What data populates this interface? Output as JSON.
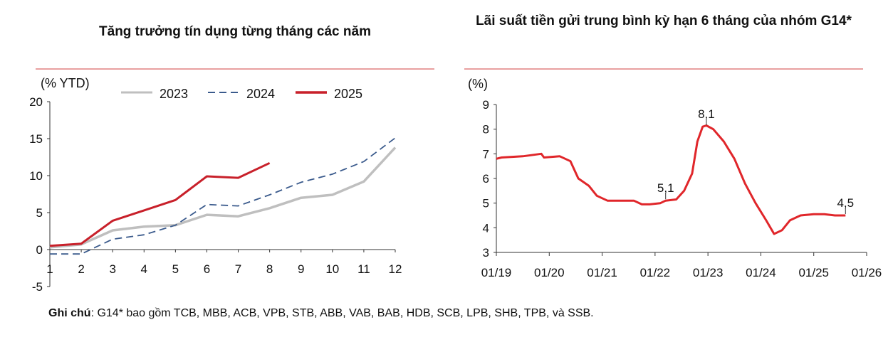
{
  "note": {
    "label": "Ghi chú",
    "text": ": G14* bao gồm TCB, MBB, ACB, VPB, STB, ABB, VAB, BAB, HDB, SCB, LPB, SHB, TPB, và SSB."
  },
  "chart_data": [
    {
      "type": "line",
      "title": "Tăng trưởng tín dụng từng tháng các năm",
      "ylabel": "(% YTD)",
      "xlabel": "",
      "xlim": [
        1,
        12
      ],
      "ylim": [
        -5,
        20
      ],
      "x_ticks": [
        "1",
        "2",
        "3",
        "4",
        "5",
        "6",
        "7",
        "8",
        "9",
        "10",
        "11",
        "12"
      ],
      "y_ticks": [
        "-5",
        "0",
        "5",
        "10",
        "15",
        "20"
      ],
      "legend_position": "top",
      "series": [
        {
          "name": "2023",
          "color": "#bfbfbf",
          "style": "solid",
          "x": [
            1,
            2,
            3,
            4,
            5,
            6,
            7,
            8,
            9,
            10,
            11,
            12
          ],
          "values": [
            0.3,
            0.7,
            2.6,
            3.1,
            3.3,
            4.7,
            4.5,
            5.6,
            7.0,
            7.4,
            9.2,
            13.8
          ]
        },
        {
          "name": "2024",
          "color": "#3a5a8c",
          "style": "dashed",
          "x": [
            1,
            2,
            3,
            4,
            5,
            6,
            7,
            8,
            9,
            10,
            11,
            12
          ],
          "values": [
            -0.6,
            -0.6,
            1.4,
            2.0,
            3.3,
            6.1,
            5.9,
            7.4,
            9.1,
            10.2,
            11.9,
            15.1
          ]
        },
        {
          "name": "2025",
          "color": "#c8202a",
          "style": "solid",
          "x": [
            1,
            2,
            3,
            4,
            5,
            6,
            7,
            8
          ],
          "values": [
            0.5,
            0.8,
            3.9,
            5.3,
            6.7,
            9.9,
            9.7,
            11.7
          ]
        }
      ]
    },
    {
      "type": "line",
      "title": "Lãi suất tiền gửi trung bình kỳ hạn 6 tháng của nhóm G14*",
      "ylabel": "(%)",
      "xlabel": "",
      "xlim": [
        2019.0,
        2026.0
      ],
      "ylim": [
        3,
        9
      ],
      "x_ticks": [
        "01/19",
        "01/20",
        "01/21",
        "01/22",
        "01/23",
        "01/24",
        "01/25",
        "01/26"
      ],
      "y_ticks": [
        "3",
        "4",
        "5",
        "6",
        "7",
        "8",
        "9"
      ],
      "series": [
        {
          "name": "G14",
          "color": "#e0262a",
          "x": [
            2019.0,
            2019.1,
            2019.5,
            2019.85,
            2019.9,
            2020.2,
            2020.4,
            2020.55,
            2020.75,
            2020.9,
            2021.1,
            2021.4,
            2021.6,
            2021.75,
            2021.9,
            2022.1,
            2022.2,
            2022.4,
            2022.55,
            2022.7,
            2022.8,
            2022.9,
            2022.97,
            2023.1,
            2023.3,
            2023.5,
            2023.7,
            2023.9,
            2024.1,
            2024.25,
            2024.4,
            2024.55,
            2024.75,
            2025.0,
            2025.2,
            2025.4,
            2025.6
          ],
          "values": [
            6.8,
            6.85,
            6.9,
            7.0,
            6.85,
            6.9,
            6.7,
            6.0,
            5.7,
            5.3,
            5.1,
            5.1,
            5.1,
            4.95,
            4.95,
            5.0,
            5.1,
            5.15,
            5.5,
            6.2,
            7.5,
            8.1,
            8.15,
            8.0,
            7.5,
            6.8,
            5.8,
            5.0,
            4.3,
            3.75,
            3.9,
            4.3,
            4.5,
            4.55,
            4.55,
            4.5,
            4.5
          ]
        }
      ],
      "annotations": [
        {
          "x": 2022.97,
          "y": 8.1,
          "text": "8,1"
        },
        {
          "x": 2022.2,
          "y": 5.1,
          "text": "5,1"
        },
        {
          "x": 2025.6,
          "y": 4.5,
          "text": "4,5"
        }
      ]
    }
  ]
}
